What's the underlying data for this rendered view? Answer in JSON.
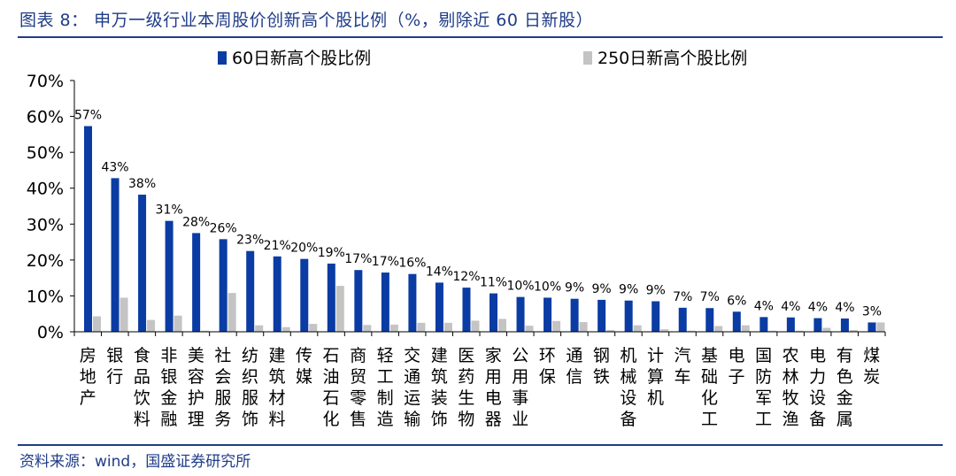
{
  "header": {
    "title": "图表 8：  申万一级行业本周股价创新高个股比例（%，剔除近 60 日新股）"
  },
  "footer": {
    "source": "资料来源：wind，国盛证券研究所"
  },
  "colors": {
    "series1": "#0a3ca3",
    "series2": "#c4c4c4",
    "title": "#1f3c88"
  },
  "chart_data": {
    "type": "bar",
    "categories": [
      "房地产",
      "银行",
      "食品饮料",
      "非银金融",
      "美容护理",
      "社会服务",
      "纺织服饰",
      "建筑材料",
      "传媒",
      "石油石化",
      "商贸零售",
      "轻工制造",
      "交通运输",
      "建筑装饰",
      "医药生物",
      "家用电器",
      "公用事业",
      "环保",
      "通信",
      "钢铁",
      "机械设备",
      "计算机",
      "汽车",
      "基础化工",
      "电子",
      "国防军工",
      "农林牧渔",
      "电力设备",
      "有色金属",
      "煤炭"
    ],
    "series": [
      {
        "name": "60日新高个股比例",
        "values": [
          57.3,
          42.8,
          38.2,
          30.9,
          27.5,
          25.8,
          22.5,
          21.0,
          20.3,
          19.0,
          17.2,
          16.5,
          16.1,
          13.7,
          12.3,
          10.7,
          9.7,
          9.5,
          9.2,
          8.9,
          8.7,
          8.5,
          6.7,
          6.6,
          5.6,
          4.1,
          4.0,
          3.8,
          3.7,
          2.6
        ]
      },
      {
        "name": "250日新高个股比例",
        "values": [
          4.3,
          9.5,
          3.3,
          4.5,
          0.3,
          10.8,
          1.8,
          1.3,
          2.2,
          12.8,
          1.9,
          2.0,
          2.5,
          2.5,
          3.1,
          3.6,
          1.7,
          3.0,
          2.7,
          0.5,
          1.8,
          0.7,
          0.3,
          1.6,
          1.8,
          0.3,
          0.3,
          1.1,
          0.5,
          2.6
        ]
      }
    ],
    "data_labels": [
      "57%",
      "43%",
      "38%",
      "31%",
      "28%",
      "26%",
      "23%",
      "21%",
      "20%",
      "19%",
      "17%",
      "17%",
      "16%",
      "14%",
      "12%",
      "11%",
      "10%",
      "10%",
      "9%",
      "9%",
      "9%",
      "9%",
      "7%",
      "7%",
      "6%",
      "4%",
      "4%",
      "4%",
      "4%",
      "3%"
    ],
    "ylim": [
      0,
      70
    ],
    "yticks": [
      0,
      10,
      20,
      30,
      40,
      50,
      60,
      70
    ],
    "ytick_labels": [
      "0%",
      "10%",
      "20%",
      "30%",
      "40%",
      "50%",
      "60%",
      "70%"
    ],
    "legend_position": "top",
    "grid": false
  }
}
